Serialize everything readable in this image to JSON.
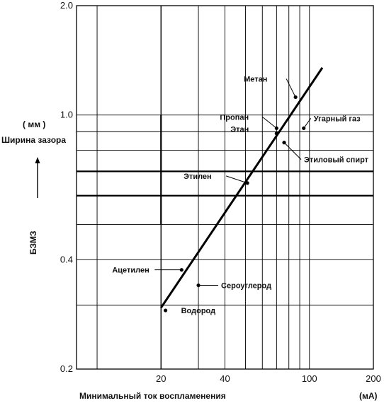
{
  "chart_data": {
    "type": "scatter",
    "x_scale": "log",
    "y_scale": "log",
    "xlim": [
      8,
      200
    ],
    "ylim": [
      0.2,
      2.0
    ],
    "x_ticks": [
      20,
      40,
      100,
      200
    ],
    "x_tick_labels": [
      "20",
      "40",
      "100",
      "200"
    ],
    "y_ticks": [
      0.2,
      0.4,
      1.0,
      2.0
    ],
    "y_tick_labels": [
      "0.2",
      "0.4",
      "1.0",
      "2.0"
    ],
    "grid": true,
    "xlabel": "Минимальный ток воспламенения",
    "xunit": "(мА)",
    "ylabel_title": "Ширина зазора",
    "yunit": "( мм )",
    "ylabel_side": "БЗМЗ",
    "trend_line": {
      "x": [
        20,
        115
      ],
      "y": [
        0.295,
        1.35
      ]
    },
    "points": [
      {
        "name": "Метан",
        "x": 86,
        "y": 1.12
      },
      {
        "name": "Пропан",
        "x": 70,
        "y": 0.92
      },
      {
        "name": "Этан",
        "x": 70,
        "y": 0.89
      },
      {
        "name": "Угарный газ",
        "x": 94,
        "y": 0.92
      },
      {
        "name": "Этиловый спирт",
        "x": 76,
        "y": 0.84
      },
      {
        "name": "Этилен",
        "x": 51,
        "y": 0.65
      },
      {
        "name": "Ацетилен",
        "x": 25,
        "y": 0.375
      },
      {
        "name": "Сероуглерод",
        "x": 30,
        "y": 0.34
      },
      {
        "name": "Водород",
        "x": 21,
        "y": 0.29
      }
    ]
  }
}
